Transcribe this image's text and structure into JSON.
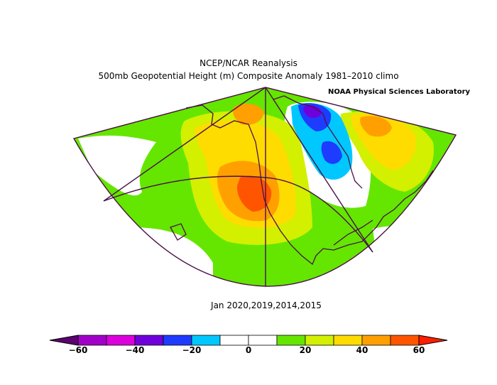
{
  "title_line1": "NCEP/NCAR Reanalysis",
  "title_line2": "500mb Geopotential Height (m) Composite Anomaly 1981–2010 climo",
  "credit": "NOAA Physical Sciences Laboratory",
  "period": "Jan 2020,2019,2014,2015",
  "colorbar": {
    "colors": [
      "#a000c8",
      "#dc00dc",
      "#6e00dc",
      "#1e3cff",
      "#00c8ff",
      "#ffffff",
      "#ffffff",
      "#64e600",
      "#d2f000",
      "#ffdc00",
      "#ffa000",
      "#ff5500"
    ],
    "low_arrow_color": "#5a0070",
    "high_arrow_color": "#ff1e00",
    "ticks": [
      "−60",
      "−40",
      "−20",
      "0",
      "20",
      "40",
      "60"
    ]
  },
  "colors": {
    "land_outline": "#4a1046",
    "positive_light": "#64e600",
    "positive_mid": "#d2f000",
    "positive_20": "#ffdc00",
    "positive_30": "#ffa000",
    "positive_40": "#ff5500",
    "negative_light": "#00c8ff",
    "negative_mid": "#1e3cff",
    "negative_strong": "#6e00dc"
  }
}
